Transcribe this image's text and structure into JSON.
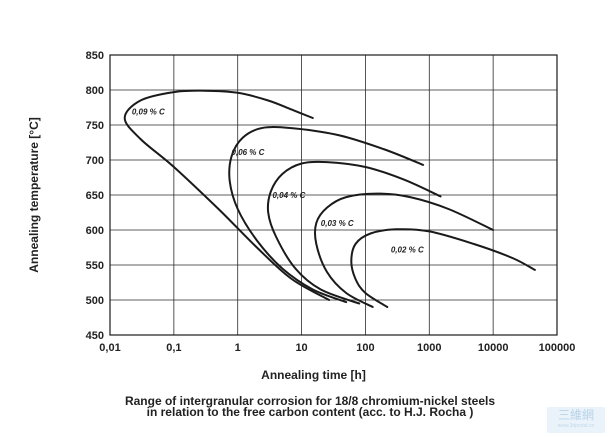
{
  "chart_data": {
    "type": "line",
    "title": "",
    "xlabel": "Annealing time [h]",
    "ylabel": "Annealing temperature [°C]",
    "x_scale": "log",
    "xlim": [
      0.01,
      100000
    ],
    "ylim": [
      450,
      850
    ],
    "grid": true,
    "x_ticks": [
      "0,01",
      "0,1",
      "1",
      "10",
      "100",
      "1000",
      "10000",
      "100000"
    ],
    "y_ticks": [
      "450",
      "500",
      "550",
      "600",
      "650",
      "700",
      "750",
      "800",
      "850"
    ],
    "series": [
      {
        "name": "0,09 % C",
        "label_at": [
          0.022,
          765
        ],
        "points": [
          [
            27,
            500
          ],
          [
            7,
            530
          ],
          [
            2,
            575
          ],
          [
            0.5,
            630
          ],
          [
            0.1,
            690
          ],
          [
            0.03,
            730
          ],
          [
            0.017,
            760
          ],
          [
            0.03,
            785
          ],
          [
            0.1,
            797
          ],
          [
            0.3,
            799
          ],
          [
            1,
            796
          ],
          [
            3,
            785
          ],
          [
            7,
            772
          ],
          [
            15,
            760
          ]
        ]
      },
      {
        "name": "0,06 % C",
        "label_at": [
          0.8,
          707
        ],
        "points": [
          [
            50,
            497
          ],
          [
            15,
            515
          ],
          [
            5,
            545
          ],
          [
            2,
            585
          ],
          [
            1,
            630
          ],
          [
            0.75,
            670
          ],
          [
            0.8,
            705
          ],
          [
            1.2,
            732
          ],
          [
            2.5,
            746
          ],
          [
            8,
            745
          ],
          [
            40,
            735
          ],
          [
            200,
            715
          ],
          [
            800,
            693
          ]
        ]
      },
      {
        "name": "0,04 % C",
        "label_at": [
          3.5,
          646
        ],
        "points": [
          [
            80,
            495
          ],
          [
            20,
            515
          ],
          [
            8,
            545
          ],
          [
            4,
            590
          ],
          [
            3,
            625
          ],
          [
            3.3,
            655
          ],
          [
            5,
            680
          ],
          [
            10,
            695
          ],
          [
            25,
            697
          ],
          [
            100,
            690
          ],
          [
            400,
            672
          ],
          [
            1500,
            648
          ]
        ]
      },
      {
        "name": "0,03 % C",
        "label_at": [
          20,
          606
        ],
        "points": [
          [
            130,
            490
          ],
          [
            50,
            510
          ],
          [
            25,
            540
          ],
          [
            17,
            580
          ],
          [
            17,
            610
          ],
          [
            25,
            632
          ],
          [
            50,
            647
          ],
          [
            150,
            652
          ],
          [
            500,
            647
          ],
          [
            2000,
            630
          ],
          [
            10000,
            600
          ]
        ]
      },
      {
        "name": "0,02 % C",
        "label_at": [
          250,
          568
        ],
        "points": [
          [
            220,
            490
          ],
          [
            100,
            510
          ],
          [
            70,
            530
          ],
          [
            60,
            555
          ],
          [
            70,
            580
          ],
          [
            120,
            595
          ],
          [
            300,
            601
          ],
          [
            1000,
            598
          ],
          [
            5000,
            580
          ],
          [
            20000,
            560
          ],
          [
            45000,
            543
          ]
        ]
      }
    ]
  },
  "caption": {
    "line1": "Range of intergranular corrosion for 18/8 chromium-nickel steels",
    "line2": "in relation to the free carbon content (acc. to H.J. Rocha )"
  },
  "watermark": {
    "text": "三維網",
    "url": "www.3dportal.cn"
  }
}
